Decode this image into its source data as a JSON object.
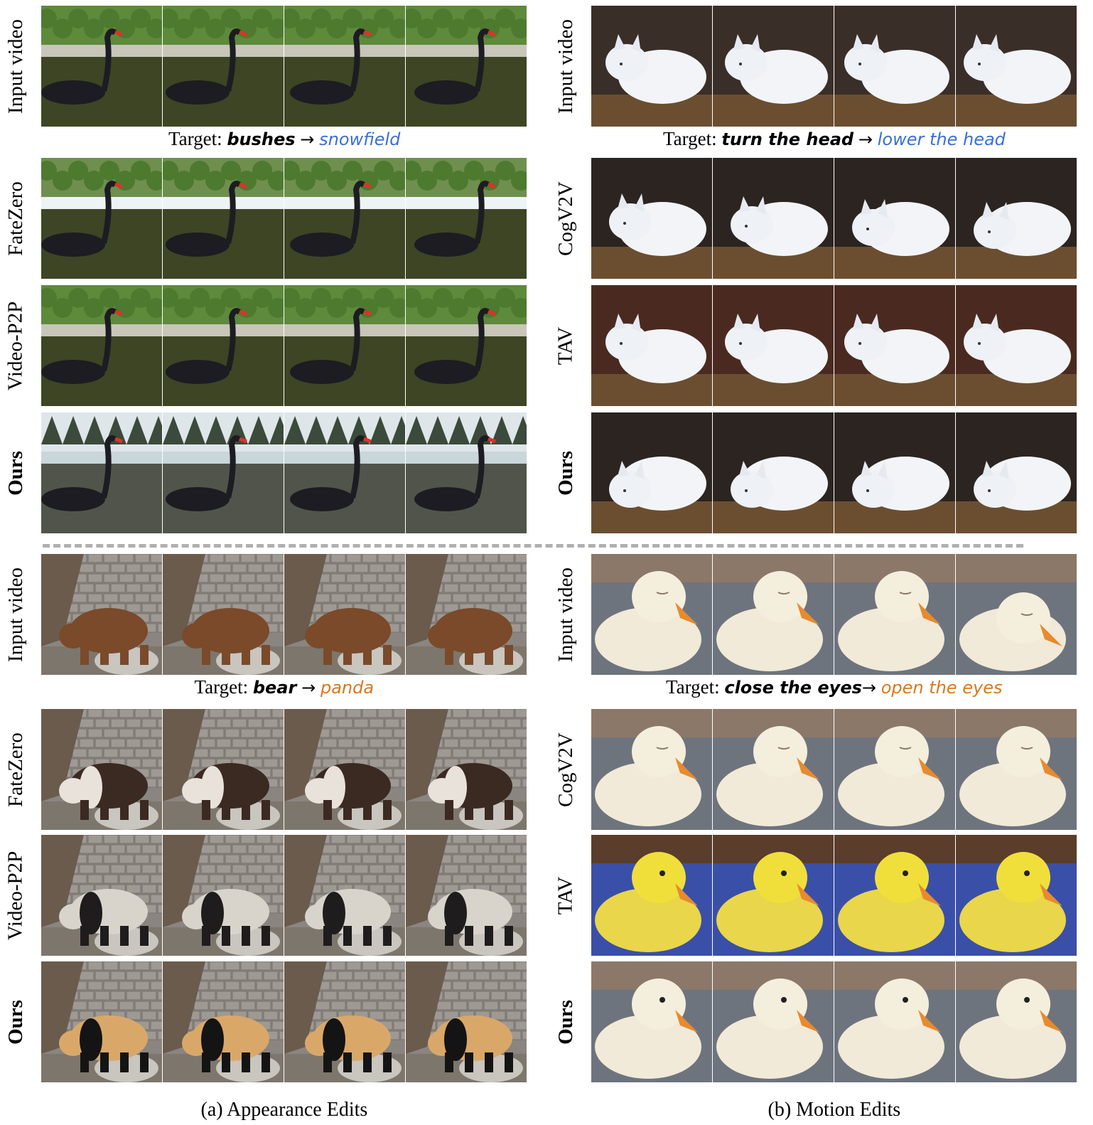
{
  "panels": [
    {
      "label_row": "Input video",
      "target_prefix": "Target:",
      "target_source": "bushes",
      "target_arrow": "→",
      "target_dest": "snowfield",
      "target_dest_color": "#3a6fd6",
      "methods": [
        "FateZero",
        "Video-P2P",
        "Ours"
      ],
      "scene": "swan"
    },
    {
      "label_row": "Input video",
      "target_prefix": "Target:",
      "target_source": "turn the head",
      "target_arrow": "→",
      "target_dest": "lower the head",
      "target_dest_color": "#3a6fd6",
      "methods": [
        "CogV2V",
        "TAV",
        "Ours"
      ],
      "scene": "fox"
    },
    {
      "label_row": "Input video",
      "target_prefix": "Target:",
      "target_source": "bear",
      "target_arrow": "→",
      "target_dest": "panda",
      "target_dest_color": "#d9781e",
      "methods": [
        "FateZero",
        "Video-P2P",
        "Ours"
      ],
      "scene": "bear"
    },
    {
      "label_row": "Input video",
      "target_prefix": "Target:",
      "target_source": "close the eyes",
      "target_arrow": "→",
      "target_dest": "open the eyes",
      "target_dest_color": "#d9781e",
      "methods": [
        "CogV2V",
        "TAV",
        "Ours"
      ],
      "scene": "duck"
    }
  ],
  "captions": {
    "left": "(a) Appearance Edits",
    "right": "(b) Motion Edits"
  }
}
